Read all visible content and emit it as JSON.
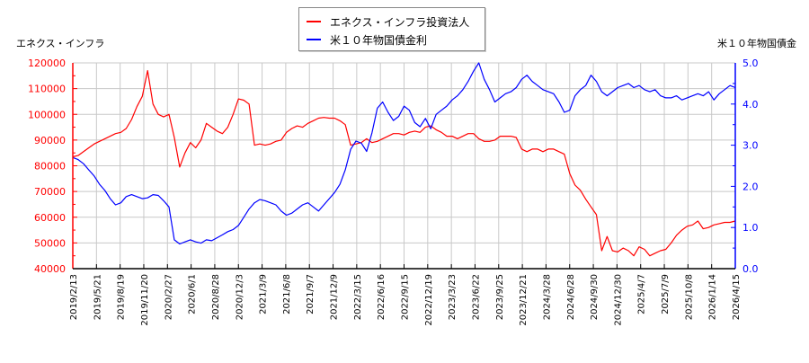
{
  "chart_data": {
    "type": "line",
    "title": "",
    "legend": {
      "position": "top-center",
      "entries": [
        {
          "label": "エネクス・インフラ投資法人",
          "color": "#ff0000"
        },
        {
          "label": "米１０年物国債金利",
          "color": "#0000ff"
        }
      ]
    },
    "y_left": {
      "label": "エネクス・インフラ",
      "color": "#ff0000",
      "range": [
        40000,
        120000
      ],
      "ticks": [
        "120000",
        "110000",
        "100000",
        "90000",
        "80000",
        "70000",
        "60000",
        "50000",
        "40000"
      ]
    },
    "y_right": {
      "label": "米１０年物国債金",
      "color": "#0000ff",
      "range": [
        0.0,
        5.0
      ],
      "ticks": [
        "5.0",
        "4.0",
        "3.0",
        "2.0",
        "1.0",
        "0.0"
      ]
    },
    "x_ticks": [
      "2019/2/13",
      "2019/5/21",
      "2019/8/19",
      "2019/11/20",
      "2020/2/27",
      "2020/6/1",
      "2020/8/28",
      "2020/12/3",
      "2021/3/9",
      "2021/6/8",
      "2021/9/7",
      "2021/12/9",
      "2022/3/15",
      "2022/6/16",
      "2022/9/15",
      "2022/12/19",
      "2023/3/23",
      "2023/6/22",
      "2023/9/25",
      "2023/12/21",
      "2024/3/28",
      "2024/6/28",
      "2024/9/30",
      "2024/12/30",
      "2025/4/7",
      "2025/7/9",
      "2025/10/8",
      "2026/1/14",
      "2026/4/15"
    ],
    "grid": true,
    "series": [
      {
        "name": "エネクス・インフラ投資法人",
        "axis": "left",
        "color": "#ff0000",
        "values": [
          83500,
          84000,
          85500,
          87000,
          88500,
          89500,
          90500,
          91500,
          92500,
          93000,
          94500,
          98000,
          103000,
          107000,
          117000,
          104000,
          100000,
          99000,
          100000,
          91000,
          79500,
          85000,
          89000,
          87000,
          90000,
          96500,
          95000,
          93500,
          92500,
          95000,
          100000,
          106000,
          105500,
          104000,
          88000,
          88500,
          88000,
          88500,
          89500,
          90000,
          93000,
          94500,
          95500,
          95000,
          96500,
          97500,
          98500,
          98800,
          98500,
          98500,
          97500,
          96000,
          88000,
          88500,
          89000,
          90500,
          89000,
          89500,
          90500,
          91500,
          92500,
          92500,
          92000,
          93000,
          93500,
          93000,
          95000,
          95500,
          94000,
          93000,
          91500,
          91500,
          90500,
          91500,
          92500,
          92500,
          90500,
          89500,
          89500,
          90000,
          91500,
          91500,
          91500,
          91000,
          86500,
          85500,
          86500,
          86500,
          85500,
          86500,
          86500,
          85500,
          84500,
          77000,
          72500,
          70500,
          67000,
          64000,
          61000,
          47000,
          52500,
          47000,
          46500,
          48000,
          47000,
          45000,
          48500,
          47500,
          45000,
          46000,
          47000,
          47500,
          50000,
          53000,
          55000,
          56500,
          57000,
          58500,
          55500,
          56000,
          57000,
          57500,
          58000,
          58000,
          58500
        ]
      },
      {
        "name": "米１０年物国債金利",
        "axis": "right",
        "color": "#0000ff",
        "values": [
          2.7,
          2.65,
          2.55,
          2.4,
          2.25,
          2.05,
          1.9,
          1.7,
          1.55,
          1.6,
          1.75,
          1.8,
          1.75,
          1.7,
          1.72,
          1.8,
          1.78,
          1.65,
          1.5,
          0.7,
          0.6,
          0.65,
          0.7,
          0.65,
          0.62,
          0.7,
          0.68,
          0.75,
          0.82,
          0.9,
          0.95,
          1.05,
          1.25,
          1.45,
          1.6,
          1.68,
          1.65,
          1.6,
          1.55,
          1.4,
          1.3,
          1.35,
          1.45,
          1.55,
          1.6,
          1.5,
          1.4,
          1.55,
          1.7,
          1.85,
          2.05,
          2.4,
          2.9,
          3.1,
          3.05,
          2.85,
          3.3,
          3.9,
          4.05,
          3.8,
          3.6,
          3.7,
          3.95,
          3.85,
          3.55,
          3.45,
          3.65,
          3.4,
          3.75,
          3.85,
          3.95,
          4.1,
          4.2,
          4.35,
          4.55,
          4.8,
          5.0,
          4.6,
          4.35,
          4.05,
          4.15,
          4.25,
          4.3,
          4.4,
          4.6,
          4.7,
          4.55,
          4.45,
          4.35,
          4.3,
          4.25,
          4.05,
          3.8,
          3.85,
          4.2,
          4.35,
          4.45,
          4.7,
          4.55,
          4.3,
          4.2,
          4.3,
          4.4,
          4.45,
          4.5,
          4.4,
          4.45,
          4.35,
          4.3,
          4.35,
          4.2,
          4.15,
          4.15,
          4.2,
          4.1,
          4.15,
          4.2,
          4.25,
          4.2,
          4.3,
          4.1,
          4.25,
          4.35,
          4.45,
          4.4
        ]
      }
    ]
  }
}
